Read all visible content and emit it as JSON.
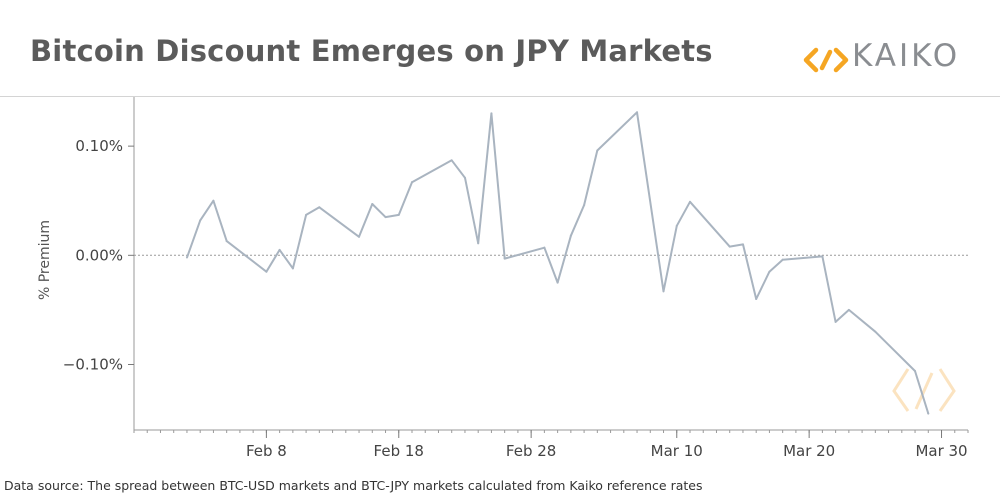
{
  "header": {
    "title": "Bitcoin Discount Emerges on JPY Markets",
    "logo_text": "KAIKO",
    "logo_icon": "kaiko-diamond-icon"
  },
  "footer": {
    "source_text": "Data source: The spread between BTC-USD markets and BTC-JPY markets calculated from Kaiko reference rates"
  },
  "colors": {
    "line": "#a9b4c0",
    "title": "#5b5b5b",
    "axis": "#7a7a7a",
    "logo_orange": "#f5a623",
    "logo_text": "#8a8d91",
    "watermark": "#fbe3c0"
  },
  "chart_data": {
    "type": "line",
    "title": "Bitcoin Discount Emerges on JPY Markets",
    "xlabel": "",
    "ylabel": "% Premium",
    "x_ticks": [
      {
        "date": "2020-02-08",
        "label": "Feb 8"
      },
      {
        "date": "2020-02-18",
        "label": "Feb 18"
      },
      {
        "date": "2020-02-28",
        "label": "Feb 28"
      },
      {
        "date": "2020-03-10",
        "label": "Mar 10"
      },
      {
        "date": "2020-03-20",
        "label": "Mar 20"
      },
      {
        "date": "2020-03-30",
        "label": "Mar 30"
      }
    ],
    "y_ticks": [
      {
        "value": 0.1,
        "label": "0.10%"
      },
      {
        "value": 0.0,
        "label": "0.00%"
      },
      {
        "value": -0.1,
        "label": "−0.10%"
      }
    ],
    "xlim": [
      "2020-01-29",
      "2020-04-01"
    ],
    "ylim": [
      -0.16,
      0.145
    ],
    "zero_line": true,
    "grid": false,
    "series": [
      {
        "values": [
          {
            "x": "2020-02-02",
            "y": -0.002
          },
          {
            "x": "2020-02-03",
            "y": 0.032
          },
          {
            "x": "2020-02-04",
            "y": 0.05
          },
          {
            "x": "2020-02-05",
            "y": 0.013
          },
          {
            "x": "2020-02-08",
            "y": -0.015
          },
          {
            "x": "2020-02-09",
            "y": 0.005
          },
          {
            "x": "2020-02-10",
            "y": -0.012
          },
          {
            "x": "2020-02-11",
            "y": 0.037
          },
          {
            "x": "2020-02-12",
            "y": 0.044
          },
          {
            "x": "2020-02-15",
            "y": 0.017
          },
          {
            "x": "2020-02-16",
            "y": 0.047
          },
          {
            "x": "2020-02-17",
            "y": 0.035
          },
          {
            "x": "2020-02-18",
            "y": 0.037
          },
          {
            "x": "2020-02-19",
            "y": 0.067
          },
          {
            "x": "2020-02-22",
            "y": 0.087
          },
          {
            "x": "2020-02-23",
            "y": 0.071
          },
          {
            "x": "2020-02-24",
            "y": 0.011
          },
          {
            "x": "2020-02-25",
            "y": 0.13
          },
          {
            "x": "2020-02-26",
            "y": -0.003
          },
          {
            "x": "2020-02-29",
            "y": 0.007
          },
          {
            "x": "2020-03-01",
            "y": -0.025
          },
          {
            "x": "2020-03-02",
            "y": 0.018
          },
          {
            "x": "2020-03-03",
            "y": 0.046
          },
          {
            "x": "2020-03-04",
            "y": 0.096
          },
          {
            "x": "2020-03-07",
            "y": 0.131
          },
          {
            "x": "2020-03-09",
            "y": -0.033
          },
          {
            "x": "2020-03-10",
            "y": 0.027
          },
          {
            "x": "2020-03-11",
            "y": 0.049
          },
          {
            "x": "2020-03-14",
            "y": 0.008
          },
          {
            "x": "2020-03-15",
            "y": 0.01
          },
          {
            "x": "2020-03-16",
            "y": -0.04
          },
          {
            "x": "2020-03-17",
            "y": -0.015
          },
          {
            "x": "2020-03-18",
            "y": -0.004
          },
          {
            "x": "2020-03-21",
            "y": -0.001
          },
          {
            "x": "2020-03-22",
            "y": -0.061
          },
          {
            "x": "2020-03-23",
            "y": -0.05
          },
          {
            "x": "2020-03-25",
            "y": -0.07
          },
          {
            "x": "2020-03-28",
            "y": -0.106
          },
          {
            "x": "2020-03-29",
            "y": -0.145
          }
        ]
      }
    ]
  }
}
